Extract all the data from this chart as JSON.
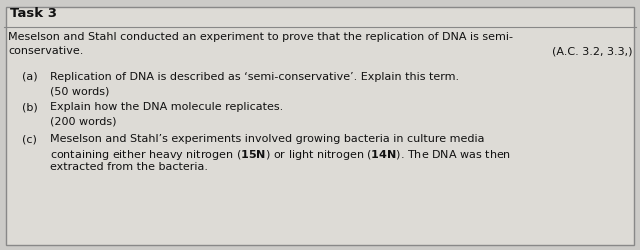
{
  "title": "Task 3",
  "intro_line1": "Meselson and Stahl conducted an experiment to prove that the replication of DNA is semi-",
  "intro_line2": "conservative.",
  "ac_ref": "(A.C. 3.2, 3.3,)",
  "qa_label": "(a)",
  "qa_text": "Replication of DNA is described as ‘semi-conservative’. Explain this term.",
  "qa_words": "(50 words)",
  "qb_label": "(b)",
  "qb_text": "Explain how the DNA molecule replicates.",
  "qb_words": "(200 words)",
  "qc_label": "(c)",
  "qc_line1": "Meselson and Stahl’s experiments involved growing bacteria in culture media",
  "qc_line2_pre": "containing either heavy nitrogen (",
  "qc_15n": "15N",
  "qc_mid": ") or light nitrogen (",
  "qc_14n": "14N",
  "qc_end": "). The DNA was then",
  "qc_line3": "extracted from the bacteria.",
  "bg_color": "#cccbc8",
  "box_bg": "#dddbd6",
  "border_color": "#888888",
  "text_color": "#111111",
  "title_fontsize": 9.5,
  "body_fontsize": 8.0,
  "fig_width": 6.4,
  "fig_height": 2.51,
  "dpi": 100
}
